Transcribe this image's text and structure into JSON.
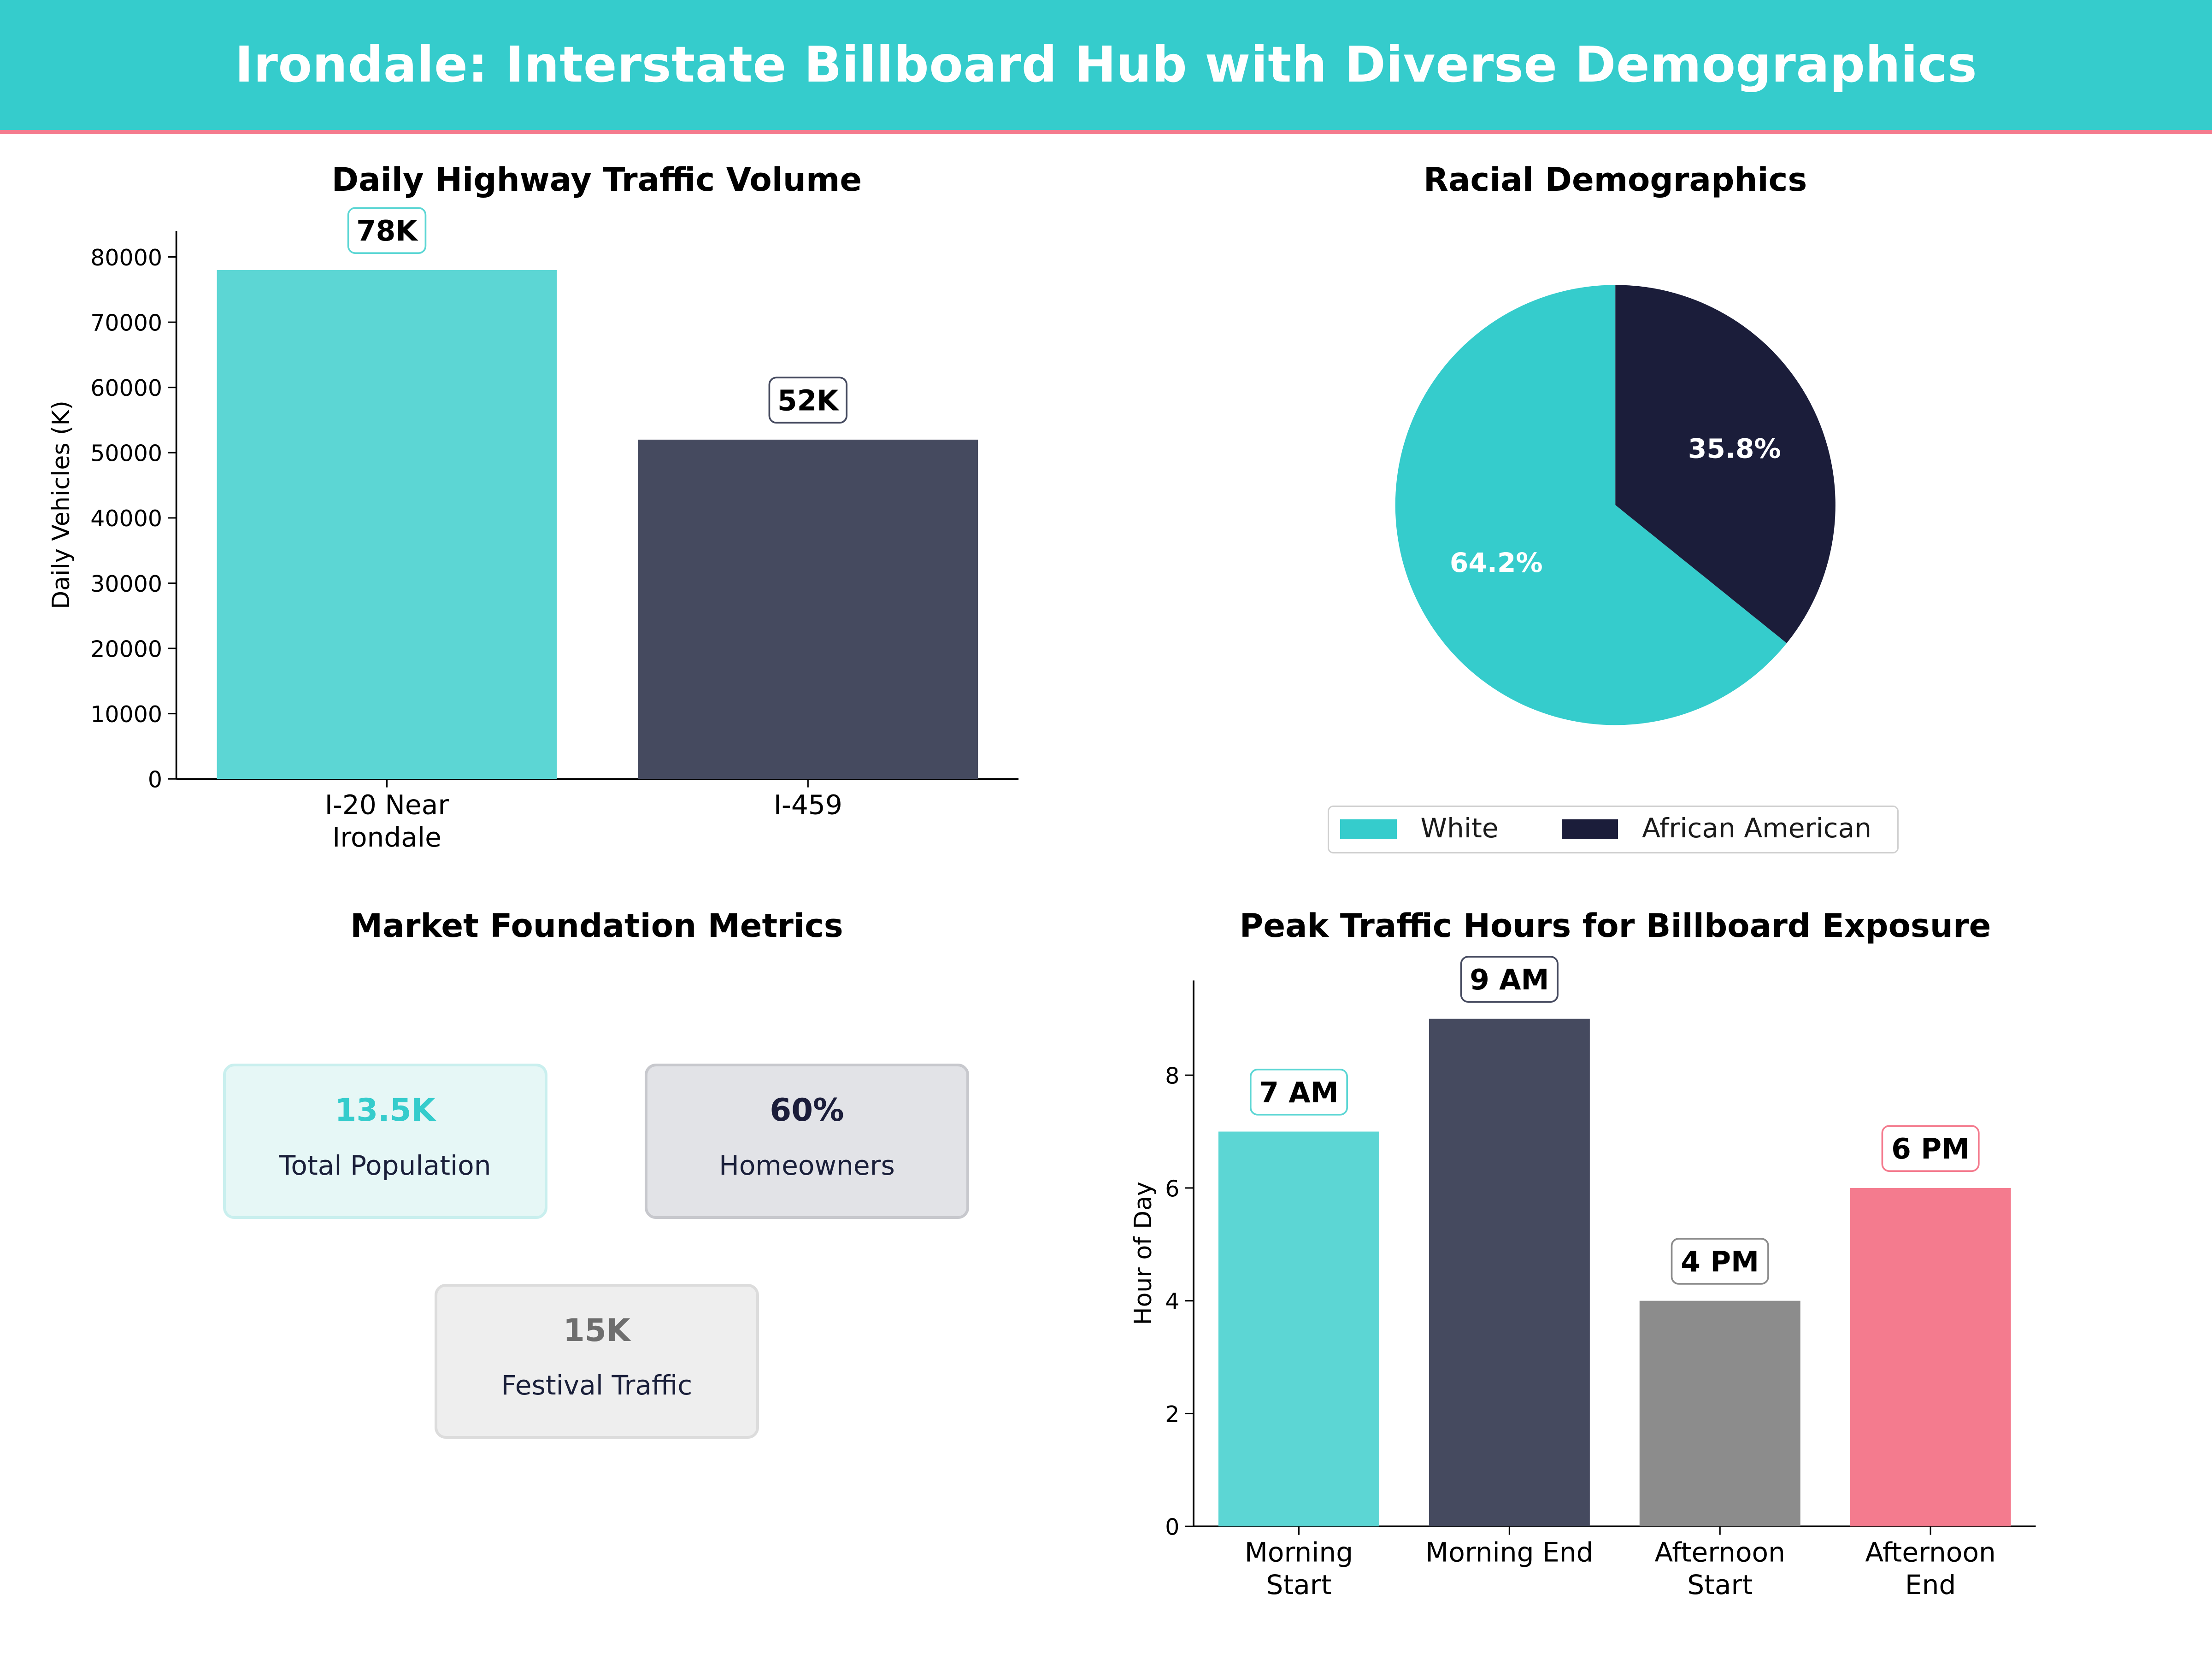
{
  "title": "Irondale: Interstate Billboard Hub with Diverse Demographics",
  "colors": {
    "banner": "#35cccc",
    "accent_line": "#f47b8e",
    "teal": "#5cd6d4",
    "navy": "#454a5f",
    "gray": "#8c8c8c",
    "pink": "#f47b8e",
    "pie_teal": "#35cccc",
    "pie_navy": "#1b1d3a"
  },
  "metrics": {
    "title": "Market Foundation Metrics",
    "cards": [
      {
        "value": "13.5K",
        "label": "Total Population",
        "color": "#35cccc",
        "bg": "#e6f7f6",
        "border": "#c9efee"
      },
      {
        "value": "60%",
        "label": "Homeowners",
        "color": "#1b1d3a",
        "bg": "#e2e3e7",
        "border": "#c7c8cd"
      },
      {
        "value": "15K",
        "label": "Festival Traffic",
        "color": "#6e6e6e",
        "bg": "#eeeeee",
        "border": "#dcdcdc"
      }
    ]
  },
  "chart_data": [
    {
      "type": "bar",
      "title": "Daily Highway Traffic Volume",
      "ylabel": "Daily Vehicles (K)",
      "xlabel": "",
      "categories": [
        "I-20 Near\nIrondale",
        "I-459"
      ],
      "values": [
        78000,
        52000
      ],
      "data_labels": [
        "78K",
        "52K"
      ],
      "colors": [
        "#5cd6d4",
        "#454a5f"
      ],
      "label_borders": [
        "#5cd6d4",
        "#454a5f"
      ],
      "yticks": [
        0,
        10000,
        20000,
        30000,
        40000,
        50000,
        60000,
        70000,
        80000
      ],
      "ylim": [
        0,
        84000
      ]
    },
    {
      "type": "pie",
      "title": "Racial Demographics",
      "labels": [
        "White",
        "African American"
      ],
      "values": [
        64.2,
        35.8
      ],
      "data_labels": [
        "64.2%",
        "35.8%"
      ],
      "colors": [
        "#35cccc",
        "#1b1d3a"
      ],
      "legend": "bottom-center"
    },
    {
      "type": "bar",
      "title": "Peak Traffic Hours for Billboard Exposure",
      "ylabel": "Hour of Day",
      "xlabel": "",
      "categories": [
        "Morning\nStart",
        "Morning End",
        "Afternoon\nStart",
        "Afternoon\nEnd"
      ],
      "values": [
        7,
        9,
        4,
        6
      ],
      "data_labels": [
        "7 AM",
        "9 AM",
        "4 PM",
        "6 PM"
      ],
      "colors": [
        "#5cd6d4",
        "#454a5f",
        "#8c8c8c",
        "#f47b8e"
      ],
      "label_borders": [
        "#5cd6d4",
        "#454a5f",
        "#8c8c8c",
        "#f47b8e"
      ],
      "yticks": [
        0,
        2,
        4,
        6,
        8
      ],
      "ylim": [
        0,
        9.68
      ]
    }
  ]
}
